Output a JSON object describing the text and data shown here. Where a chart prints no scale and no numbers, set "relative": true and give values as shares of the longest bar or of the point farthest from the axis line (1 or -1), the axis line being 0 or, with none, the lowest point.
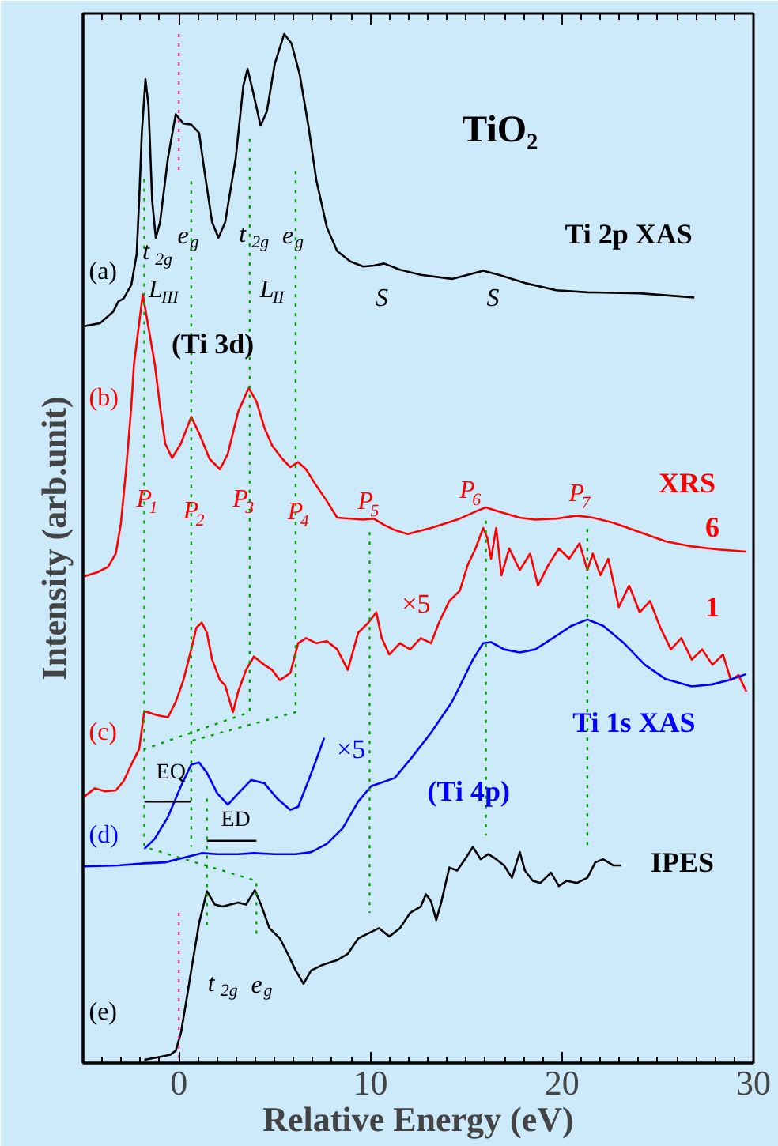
{
  "chart_data": {
    "type": "line",
    "relative": true,
    "xlabel": "Relative Energy (eV)",
    "ylabel": "Intensity (arb.unit)",
    "xlim": [
      -5,
      30
    ],
    "xticks": [
      0,
      10,
      20,
      30
    ],
    "series": [
      {
        "color": "#000000",
        "line_style": "solid",
        "x": [
          -4.93,
          -4.11,
          -3.43,
          -3.16,
          -2.88,
          -2.48,
          -2.2,
          -2.07,
          -1.93,
          -1.74,
          -1.58,
          -1.39,
          -1.2,
          -0.98,
          -0.57,
          -0.16,
          0.24,
          0.65,
          1.06,
          1.33,
          1.74,
          2.07,
          2.42,
          2.97,
          3.37,
          3.59,
          3.86,
          4.27,
          4.6,
          5.01,
          5.5,
          5.88,
          6.31,
          6.78,
          7.18,
          7.73,
          8.27,
          8.95,
          9.63,
          10.18,
          10.72,
          11.54,
          12.63,
          14.26,
          15.08,
          15.89,
          16.71,
          18.07,
          19.7,
          21.33,
          24.06,
          26.91
        ],
        "values": [
          0.716,
          0.719,
          0.73,
          0.74,
          0.743,
          0.756,
          0.786,
          0.838,
          0.904,
          0.956,
          0.93,
          0.838,
          0.802,
          0.817,
          0.879,
          0.922,
          0.913,
          0.912,
          0.904,
          0.868,
          0.817,
          0.802,
          0.817,
          0.879,
          0.95,
          0.966,
          0.945,
          0.911,
          0.925,
          0.971,
          1.0,
          0.991,
          0.961,
          0.909,
          0.858,
          0.812,
          0.789,
          0.779,
          0.774,
          0.775,
          0.777,
          0.771,
          0.766,
          0.762,
          0.766,
          0.77,
          0.766,
          0.758,
          0.751,
          0.749,
          0.748,
          0.744
        ]
      },
      {
        "color": "#ff0000",
        "line_style": "solid",
        "x": [
          -4.93,
          -4.24,
          -3.7,
          -3.29,
          -3.02,
          -2.75,
          -2.48,
          -2.34,
          -1.88,
          -1.25,
          -0.98,
          -0.71,
          -0.35,
          0.11,
          0.65,
          1.06,
          1.61,
          2.15,
          2.56,
          3.1,
          3.65,
          4.05,
          4.46,
          4.87,
          5.41,
          5.82,
          6.23,
          6.64,
          7.18,
          7.73,
          8.27,
          8.95,
          9.63,
          10.18,
          10.72,
          11.27,
          11.94,
          13.17,
          14.53,
          15.62,
          16.03,
          16.71,
          17.8,
          18.61,
          19.7,
          20.79,
          21.61,
          22.69,
          24.06,
          25.42,
          26.78,
          28.14,
          29.63
        ],
        "values": [
          0.473,
          0.477,
          0.482,
          0.495,
          0.525,
          0.577,
          0.638,
          0.679,
          0.747,
          0.679,
          0.638,
          0.602,
          0.588,
          0.602,
          0.628,
          0.612,
          0.587,
          0.577,
          0.592,
          0.633,
          0.656,
          0.643,
          0.618,
          0.6,
          0.587,
          0.579,
          0.584,
          0.577,
          0.561,
          0.546,
          0.53,
          0.529,
          0.528,
          0.529,
          0.523,
          0.518,
          0.514,
          0.52,
          0.528,
          0.537,
          0.54,
          0.536,
          0.53,
          0.528,
          0.529,
          0.532,
          0.53,
          0.525,
          0.516,
          0.507,
          0.502,
          0.499,
          0.497
        ]
      },
      {
        "color": "#ff0000",
        "line_style": "solid",
        "x": [
          -4.93,
          -4.38,
          -3.84,
          -3.29,
          -2.88,
          -2.48,
          -2.07,
          -1.8,
          -1.12,
          -0.57,
          -0.16,
          0.24,
          0.65,
          0.92,
          1.2,
          1.47,
          1.74,
          2.15,
          2.42,
          2.83,
          3.1,
          3.51,
          3.92,
          4.46,
          4.87,
          5.28,
          5.82,
          6.23,
          6.64,
          7.18,
          7.73,
          8.27,
          8.82,
          9.36,
          9.9,
          10.31,
          10.59,
          10.99,
          11.54,
          12.08,
          12.63,
          13.17,
          13.58,
          14.12,
          14.67,
          15.08,
          15.49,
          15.89,
          16.11,
          16.3,
          16.57,
          16.84,
          17.25,
          17.8,
          18.34,
          18.75,
          19.29,
          19.84,
          20.38,
          20.92,
          21.33,
          21.61,
          22.01,
          22.42,
          22.97,
          23.51,
          24.06,
          24.6,
          25.14,
          25.69,
          26.23,
          26.78,
          27.32,
          27.86,
          28.41,
          28.82,
          29.22,
          29.63
        ],
        "values": [
          0.259,
          0.267,
          0.264,
          0.265,
          0.274,
          0.29,
          0.305,
          0.342,
          0.338,
          0.336,
          0.351,
          0.372,
          0.402,
          0.423,
          0.428,
          0.418,
          0.392,
          0.372,
          0.367,
          0.341,
          0.361,
          0.382,
          0.395,
          0.387,
          0.382,
          0.372,
          0.379,
          0.408,
          0.413,
          0.408,
          0.41,
          0.402,
          0.382,
          0.418,
          0.428,
          0.438,
          0.413,
          0.397,
          0.408,
          0.402,
          0.413,
          0.408,
          0.428,
          0.449,
          0.459,
          0.484,
          0.5,
          0.52,
          0.51,
          0.49,
          0.52,
          0.474,
          0.5,
          0.479,
          0.495,
          0.464,
          0.484,
          0.5,
          0.49,
          0.505,
          0.479,
          0.495,
          0.474,
          0.49,
          0.443,
          0.464,
          0.438,
          0.449,
          0.423,
          0.402,
          0.413,
          0.392,
          0.402,
          0.387,
          0.397,
          0.372,
          0.377,
          0.361
        ]
      },
      {
        "color": "#0000ff",
        "line_style": "solid",
        "x": [
          -4.93,
          -3.16,
          -1.8,
          -0.71,
          0.38,
          1.2,
          2.01,
          3.1,
          3.92,
          5.01,
          6.1,
          6.91,
          7.73,
          8.55,
          9.36,
          10.04,
          11.27,
          12.08,
          13.17,
          14.26,
          14.53,
          15.35,
          15.89,
          16.3,
          16.98,
          17.8,
          18.61,
          19.7,
          20.51,
          21.33,
          22.15,
          23.24,
          24.33,
          25.42,
          26.78,
          27.86,
          28.68,
          29.63
        ],
        "values": [
          0.191,
          0.192,
          0.194,
          0.195,
          0.2,
          0.204,
          0.203,
          0.203,
          0.204,
          0.203,
          0.203,
          0.205,
          0.213,
          0.228,
          0.254,
          0.269,
          0.277,
          0.295,
          0.321,
          0.351,
          0.361,
          0.392,
          0.408,
          0.409,
          0.402,
          0.399,
          0.402,
          0.415,
          0.425,
          0.431,
          0.425,
          0.408,
          0.387,
          0.373,
          0.366,
          0.368,
          0.372,
          0.378
        ]
      },
      {
        "color": "#0000ff",
        "line_style": "solid",
        "x": [
          -1.8,
          -1.25,
          -0.57,
          0.11,
          0.65,
          1.06,
          1.47,
          2.01,
          2.56,
          3.1,
          3.78,
          4.46,
          5.14,
          5.82,
          6.23,
          6.78,
          7.18,
          7.59
        ],
        "values": [
          0.208,
          0.218,
          0.239,
          0.269,
          0.29,
          0.292,
          0.282,
          0.262,
          0.251,
          0.262,
          0.275,
          0.272,
          0.257,
          0.246,
          0.249,
          0.275,
          0.295,
          0.316
        ]
      },
      {
        "color": "#000000",
        "line_style": "solid",
        "x": [
          -1.8,
          -0.98,
          -0.44,
          -0.16,
          0.11,
          0.38,
          0.65,
          1.06,
          1.47,
          1.88,
          2.29,
          2.69,
          3.1,
          3.51,
          3.97,
          4.33,
          4.73,
          5.28,
          5.69,
          6.1,
          6.51,
          6.91,
          7.46,
          8.27,
          8.82,
          9.36,
          9.9,
          10.45,
          10.99,
          11.54,
          12.08,
          12.63,
          12.9,
          13.17,
          13.44,
          13.71,
          14.12,
          14.53,
          14.94,
          15.35,
          15.76,
          16.16,
          16.57,
          16.98,
          17.39,
          17.8,
          18.07,
          18.48,
          18.88,
          19.43,
          19.84,
          20.24,
          20.79,
          21.33,
          21.74,
          22.15,
          22.69,
          23.1
        ],
        "values": [
          0.003,
          0.006,
          0.008,
          0.012,
          0.029,
          0.059,
          0.09,
          0.136,
          0.167,
          0.154,
          0.152,
          0.154,
          0.156,
          0.154,
          0.168,
          0.152,
          0.131,
          0.121,
          0.106,
          0.09,
          0.077,
          0.09,
          0.095,
          0.1,
          0.106,
          0.121,
          0.126,
          0.131,
          0.123,
          0.131,
          0.146,
          0.152,
          0.164,
          0.157,
          0.139,
          0.157,
          0.19,
          0.187,
          0.198,
          0.21,
          0.198,
          0.203,
          0.198,
          0.192,
          0.18,
          0.205,
          0.187,
          0.177,
          0.175,
          0.185,
          0.172,
          0.177,
          0.175,
          0.18,
          0.195,
          0.198,
          0.192,
          0.192
        ]
      },
      {
        "color": "#00a000",
        "line_style": "dotted",
        "x": [
          -1.8,
          -1.8,
          4.05,
          4.05
        ],
        "values": [
          0.859,
          0.21,
          0.177,
          0.121
        ]
      },
      {
        "color": "#00a000",
        "line_style": "dotted",
        "x": [
          0.65,
          0.65
        ],
        "values": [
          0.857,
          0.21
        ]
      },
      {
        "color": "#00a000",
        "line_style": "dotted",
        "x": [
          1.47,
          1.47
        ],
        "values": [
          0.257,
          0.131
        ]
      },
      {
        "color": "#00a000",
        "line_style": "dotted",
        "x": [
          3.7,
          3.7,
          -1.8
        ],
        "values": [
          0.898,
          0.341,
          0.305
        ]
      },
      {
        "color": "#00a000",
        "line_style": "dotted",
        "x": [
          6.1,
          6.1,
          0.65
        ],
        "values": [
          0.867,
          0.341,
          0.313
        ]
      },
      {
        "color": "#00a000",
        "line_style": "dotted",
        "x": [
          9.96,
          9.96
        ],
        "values": [
          0.516,
          0.146
        ]
      },
      {
        "color": "#00a000",
        "line_style": "dotted",
        "x": [
          16.03,
          16.03
        ],
        "values": [
          0.527,
          0.221
        ]
      },
      {
        "color": "#00a000",
        "line_style": "dotted",
        "x": [
          21.33,
          21.33
        ],
        "values": [
          0.519,
          0.208
        ]
      },
      {
        "color": "#ff3399",
        "line_style": "dotted",
        "x": [
          0,
          0
        ],
        "values": [
          1.0,
          0.866
        ]
      },
      {
        "color": "#ff3399",
        "line_style": "dotted",
        "x": [
          0,
          0
        ],
        "values": [
          0.146,
          0.0
        ]
      },
      {
        "color": "#000000",
        "line_style": "solid",
        "x": [
          -1.8,
          0.65
        ],
        "values": [
          0.254,
          0.254
        ]
      },
      {
        "color": "#000000",
        "line_style": "solid",
        "x": [
          1.47,
          4.05
        ],
        "values": [
          0.216,
          0.216
        ]
      }
    ],
    "annotations": [
      "TiO₂",
      "Ti 2p XAS",
      "(a)",
      "t$_{2g}$",
      "e$_{g}$",
      "t$_{2g}$",
      "e$_{g}$",
      "L$_{III}$",
      "L$_{II}$",
      "S",
      "S",
      "(Ti 3d)",
      "(b)",
      "P$_{1}$",
      "P$_{2}$",
      "P$_{3}$",
      "P$_{4}$",
      "P$_{5}$",
      "P$_{6}$",
      "P$_{7}$",
      "XRS",
      "6",
      "×5",
      "1",
      "(c)",
      "Ti 1s XAS",
      "×5",
      "EQ",
      "ED",
      "(d)",
      "(Ti 4p)",
      "IPES",
      "t$_{2g}$",
      "e$_{g}$",
      "(e)"
    ]
  }
}
